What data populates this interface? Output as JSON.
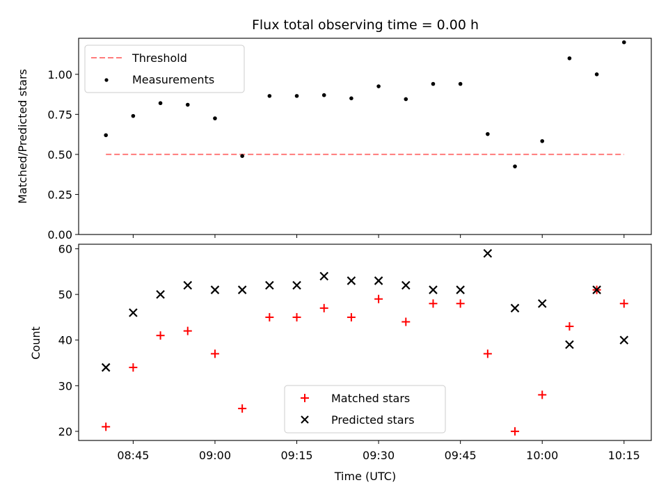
{
  "chart_data": [
    {
      "type": "scatter",
      "title": "Flux total observing time = 0.00 h",
      "ylabel": "Matched/Predicted stars",
      "xlabel": "",
      "ylim": [
        0,
        1.225
      ],
      "yticks": [
        "0.00",
        "0.25",
        "0.50",
        "0.75",
        "1.00"
      ],
      "ytick_values": [
        0,
        0.25,
        0.5,
        0.75,
        1.0
      ],
      "threshold": {
        "name": "Threshold",
        "value": 0.5,
        "x_start": "08:40",
        "x_end": "10:15",
        "color": "#ff7b7b"
      },
      "series": [
        {
          "name": "Measurements",
          "color": "#000000",
          "x": [
            "08:40",
            "08:45",
            "08:50",
            "08:55",
            "09:00",
            "09:05",
            "09:10",
            "09:15",
            "09:20",
            "09:25",
            "09:30",
            "09:35",
            "09:40",
            "09:45",
            "09:50",
            "09:55",
            "10:00",
            "10:05",
            "10:10",
            "10:15"
          ],
          "values": [
            0.62,
            0.74,
            0.82,
            0.81,
            0.725,
            0.49,
            0.865,
            0.865,
            0.87,
            0.85,
            0.925,
            0.845,
            0.94,
            0.94,
            0.627,
            0.425,
            0.583,
            1.1,
            1.0,
            1.2
          ]
        }
      ],
      "legend": [
        "Threshold",
        "Measurements"
      ],
      "legend_position": "top-left"
    },
    {
      "type": "scatter",
      "title": "",
      "ylabel": "Count",
      "xlabel": "Time (UTC)",
      "ylim": [
        18,
        61
      ],
      "yticks": [
        "20",
        "30",
        "40",
        "50",
        "60"
      ],
      "ytick_values": [
        20,
        30,
        40,
        50,
        60
      ],
      "xticks": [
        "08:45",
        "09:00",
        "09:15",
        "09:30",
        "09:45",
        "10:00",
        "10:15"
      ],
      "series": [
        {
          "name": "Matched stars",
          "marker": "plus",
          "color": "#ff0000",
          "x": [
            "08:40",
            "08:45",
            "08:50",
            "08:55",
            "09:00",
            "09:05",
            "09:10",
            "09:15",
            "09:20",
            "09:25",
            "09:30",
            "09:35",
            "09:40",
            "09:45",
            "09:50",
            "09:55",
            "10:00",
            "10:05",
            "10:10",
            "10:15"
          ],
          "values": [
            21,
            34,
            41,
            42,
            37,
            25,
            45,
            45,
            47,
            45,
            49,
            44,
            48,
            48,
            37,
            20,
            28,
            43,
            51,
            48
          ]
        },
        {
          "name": "Predicted stars",
          "marker": "x",
          "color": "#000000",
          "x": [
            "08:40",
            "08:45",
            "08:50",
            "08:55",
            "09:00",
            "09:05",
            "09:10",
            "09:15",
            "09:20",
            "09:25",
            "09:30",
            "09:35",
            "09:40",
            "09:45",
            "09:50",
            "09:55",
            "10:00",
            "10:05",
            "10:10",
            "10:15"
          ],
          "values": [
            34,
            46,
            50,
            52,
            51,
            51,
            52,
            52,
            54,
            53,
            53,
            52,
            51,
            51,
            59,
            47,
            48,
            39,
            51,
            40
          ]
        }
      ],
      "legend": [
        "Matched stars",
        "Predicted stars"
      ],
      "legend_position": "lower-center"
    }
  ],
  "x_axis": {
    "min": "08:35",
    "max": "10:20"
  }
}
